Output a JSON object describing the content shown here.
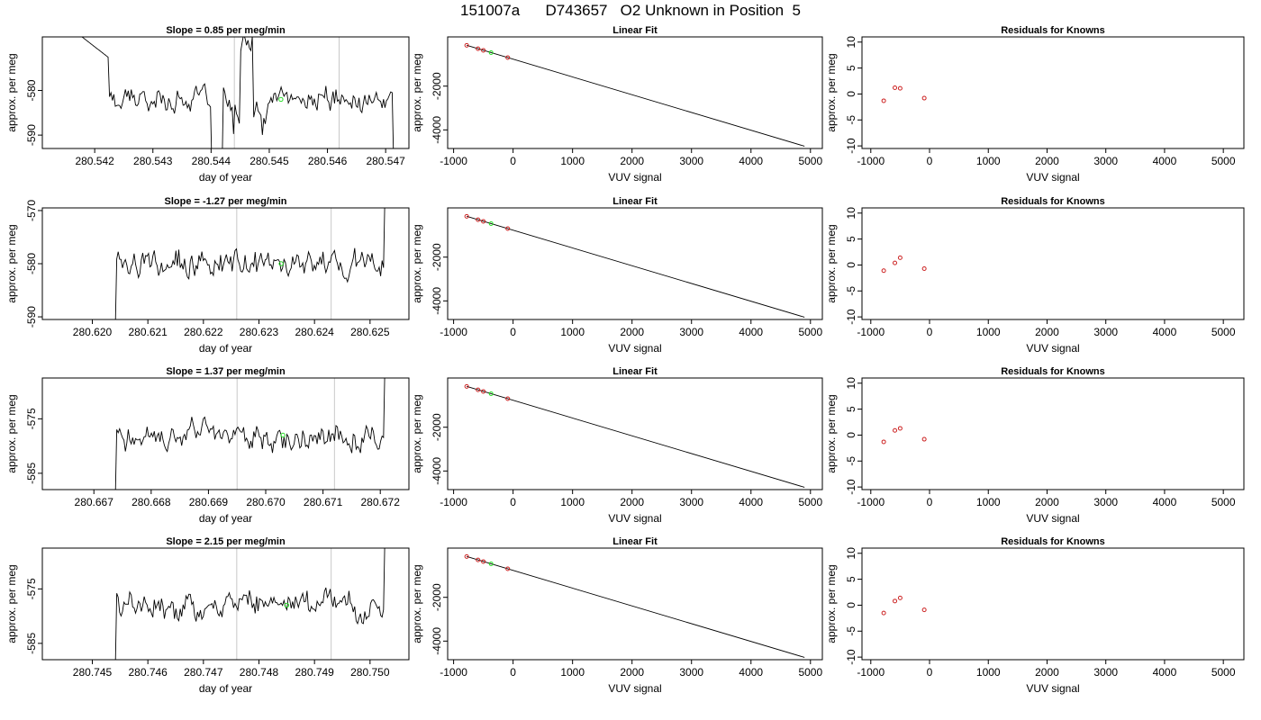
{
  "figure_title": "151007a      D743657   O2 Unknown in Position  5",
  "chart_data": [
    {
      "type": "line",
      "title": "Slope =  0.85  per meg/min",
      "xlabel": "day of year",
      "ylabel": "approx. per meg",
      "xlim": [
        280.5411,
        280.5474
      ],
      "ylim": [
        -593,
        -568
      ],
      "xticks": [
        280.542,
        280.543,
        280.544,
        280.545,
        280.546,
        280.547
      ],
      "xtick_labels": [
        "280.542",
        "280.543",
        "280.544",
        "280.545",
        "280.546",
        "280.547"
      ],
      "yticks": [
        -590,
        -580
      ],
      "ytick_labels": [
        "-590",
        "-580"
      ],
      "vlines": [
        280.5444,
        280.5462
      ],
      "marker": [
        280.5452,
        -582
      ]
    },
    {
      "type": "scatter",
      "title": "Linear Fit",
      "xlabel": "VUV signal",
      "ylabel": "approx. per meg",
      "xlim": [
        -1100,
        5200
      ],
      "ylim": [
        -4850,
        250
      ],
      "xticks": [
        -1000,
        0,
        1000,
        2000,
        3000,
        4000,
        5000
      ],
      "xtick_labels": [
        "-1000",
        "0",
        "1000",
        "2000",
        "3000",
        "4000",
        "5000"
      ],
      "yticks": [
        -4000,
        -2000
      ],
      "ytick_labels": [
        "-4000",
        "-2000"
      ],
      "fit_line": [
        [
          -780,
          -135
        ],
        [
          4900,
          -4745
        ]
      ],
      "points": [
        [
          -780,
          -135
        ],
        [
          -590,
          -290
        ],
        [
          -500,
          -365
        ],
        [
          -90,
          -695
        ]
      ],
      "unknown_point": [
        -370,
        -470
      ]
    },
    {
      "type": "scatter",
      "title": "Residuals for Knowns",
      "xlabel": "VUV signal",
      "ylabel": "approx. per meg",
      "xlim": [
        -1150,
        5350
      ],
      "ylim": [
        -10.5,
        11
      ],
      "xticks": [
        -1000,
        0,
        1000,
        2000,
        3000,
        4000,
        5000
      ],
      "xtick_labels": [
        "-1000",
        "0",
        "1000",
        "2000",
        "3000",
        "4000",
        "5000"
      ],
      "yticks": [
        -10,
        -5,
        0,
        5,
        10
      ],
      "ytick_labels": [
        "-10",
        "-5",
        "0",
        "5",
        "10"
      ],
      "points": [
        [
          -780,
          -1.3
        ],
        [
          -590,
          1.2
        ],
        [
          -500,
          1.1
        ],
        [
          -90,
          -0.8
        ]
      ]
    },
    {
      "type": "line",
      "title": "Slope =  -1.27  per meg/min",
      "xlabel": "day of year",
      "ylabel": "approx. per meg",
      "xlim": [
        280.6191,
        280.6257
      ],
      "ylim": [
        -590.5,
        -569.5
      ],
      "xticks": [
        280.62,
        280.621,
        280.622,
        280.623,
        280.624,
        280.625
      ],
      "xtick_labels": [
        "280.620",
        "280.621",
        "280.622",
        "280.623",
        "280.624",
        "280.625"
      ],
      "yticks": [
        -590,
        -580,
        -570
      ],
      "ytick_labels": [
        "-590",
        "-580",
        "-570"
      ],
      "vlines": [
        280.6226,
        280.6243
      ],
      "marker": [
        280.6234,
        -580
      ]
    },
    {
      "type": "scatter",
      "title": "Linear Fit",
      "xlabel": "VUV signal",
      "ylabel": "approx. per meg",
      "xlim": [
        -1100,
        5200
      ],
      "ylim": [
        -4850,
        250
      ],
      "xticks": [
        -1000,
        0,
        1000,
        2000,
        3000,
        4000,
        5000
      ],
      "xtick_labels": [
        "-1000",
        "0",
        "1000",
        "2000",
        "3000",
        "4000",
        "5000"
      ],
      "yticks": [
        -4000,
        -2000
      ],
      "ytick_labels": [
        "-4000",
        "-2000"
      ],
      "fit_line": [
        [
          -780,
          -135
        ],
        [
          4900,
          -4745
        ]
      ],
      "points": [
        [
          -780,
          -135
        ],
        [
          -590,
          -290
        ],
        [
          -500,
          -365
        ],
        [
          -90,
          -695
        ]
      ],
      "unknown_point": [
        -370,
        -470
      ]
    },
    {
      "type": "scatter",
      "title": "Residuals for Knowns",
      "xlabel": "VUV signal",
      "ylabel": "approx. per meg",
      "xlim": [
        -1150,
        5350
      ],
      "ylim": [
        -10.5,
        11
      ],
      "xticks": [
        -1000,
        0,
        1000,
        2000,
        3000,
        4000,
        5000
      ],
      "xtick_labels": [
        "-1000",
        "0",
        "1000",
        "2000",
        "3000",
        "4000",
        "5000"
      ],
      "yticks": [
        -10,
        -5,
        0,
        5,
        10
      ],
      "ytick_labels": [
        "-10",
        "-5",
        "0",
        "5",
        "10"
      ],
      "points": [
        [
          -780,
          -1.1
        ],
        [
          -590,
          0.4
        ],
        [
          -500,
          1.4
        ],
        [
          -90,
          -0.7
        ]
      ]
    },
    {
      "type": "line",
      "title": "Slope =  1.37  per meg/min",
      "xlabel": "day of year",
      "ylabel": "approx. per meg",
      "xlim": [
        280.6661,
        280.6725
      ],
      "ylim": [
        -588,
        -567.5
      ],
      "xticks": [
        280.667,
        280.668,
        280.669,
        280.67,
        280.671,
        280.672
      ],
      "xtick_labels": [
        "280.667",
        "280.668",
        "280.669",
        "280.670",
        "280.671",
        "280.672"
      ],
      "yticks": [
        -585,
        -575
      ],
      "ytick_labels": [
        "-585",
        "-575"
      ],
      "vlines": [
        280.6695,
        280.6712
      ],
      "marker": [
        280.6703,
        -578
      ]
    },
    {
      "type": "scatter",
      "title": "Linear Fit",
      "xlabel": "VUV signal",
      "ylabel": "approx. per meg",
      "xlim": [
        -1100,
        5200
      ],
      "ylim": [
        -4850,
        250
      ],
      "xticks": [
        -1000,
        0,
        1000,
        2000,
        3000,
        4000,
        5000
      ],
      "xtick_labels": [
        "-1000",
        "0",
        "1000",
        "2000",
        "3000",
        "4000",
        "5000"
      ],
      "yticks": [
        -4000,
        -2000
      ],
      "ytick_labels": [
        "-4000",
        "-2000"
      ],
      "fit_line": [
        [
          -780,
          -135
        ],
        [
          4900,
          -4745
        ]
      ],
      "points": [
        [
          -780,
          -135
        ],
        [
          -590,
          -290
        ],
        [
          -500,
          -365
        ],
        [
          -90,
          -695
        ]
      ],
      "unknown_point": [
        -370,
        -470
      ]
    },
    {
      "type": "scatter",
      "title": "Residuals for Knowns",
      "xlabel": "VUV signal",
      "ylabel": "approx. per meg",
      "xlim": [
        -1150,
        5350
      ],
      "ylim": [
        -10.5,
        11
      ],
      "xticks": [
        -1000,
        0,
        1000,
        2000,
        3000,
        4000,
        5000
      ],
      "xtick_labels": [
        "-1000",
        "0",
        "1000",
        "2000",
        "3000",
        "4000",
        "5000"
      ],
      "yticks": [
        -10,
        -5,
        0,
        5,
        10
      ],
      "ytick_labels": [
        "-10",
        "-5",
        "0",
        "5",
        "10"
      ],
      "points": [
        [
          -780,
          -1.3
        ],
        [
          -590,
          0.9
        ],
        [
          -500,
          1.3
        ],
        [
          -90,
          -0.8
        ]
      ]
    },
    {
      "type": "line",
      "title": "Slope =  2.15  per meg/min",
      "xlabel": "day of year",
      "ylabel": "approx. per meg",
      "xlim": [
        280.7441,
        280.7507
      ],
      "ylim": [
        -588,
        -567.5
      ],
      "xticks": [
        280.745,
        280.746,
        280.747,
        280.748,
        280.749,
        280.75
      ],
      "xtick_labels": [
        "280.745",
        "280.746",
        "280.747",
        "280.748",
        "280.749",
        "280.750"
      ],
      "yticks": [
        -585,
        -575
      ],
      "ytick_labels": [
        "-585",
        "-575"
      ],
      "vlines": [
        280.7476,
        280.7493
      ],
      "marker": [
        280.7485,
        -578
      ]
    },
    {
      "type": "scatter",
      "title": "Linear Fit",
      "xlabel": "VUV signal",
      "ylabel": "approx. per meg",
      "xlim": [
        -1100,
        5200
      ],
      "ylim": [
        -4850,
        250
      ],
      "xticks": [
        -1000,
        0,
        1000,
        2000,
        3000,
        4000,
        5000
      ],
      "xtick_labels": [
        "-1000",
        "0",
        "1000",
        "2000",
        "3000",
        "4000",
        "5000"
      ],
      "yticks": [
        -4000,
        -2000
      ],
      "ytick_labels": [
        "-4000",
        "-2000"
      ],
      "fit_line": [
        [
          -780,
          -135
        ],
        [
          4900,
          -4745
        ]
      ],
      "points": [
        [
          -780,
          -135
        ],
        [
          -590,
          -290
        ],
        [
          -500,
          -365
        ],
        [
          -90,
          -695
        ]
      ],
      "unknown_point": [
        -370,
        -470
      ]
    },
    {
      "type": "scatter",
      "title": "Residuals for Knowns",
      "xlabel": "VUV signal",
      "ylabel": "approx. per meg",
      "xlim": [
        -1150,
        5350
      ],
      "ylim": [
        -10.5,
        11
      ],
      "xticks": [
        -1000,
        0,
        1000,
        2000,
        3000,
        4000,
        5000
      ],
      "xtick_labels": [
        "-1000",
        "0",
        "1000",
        "2000",
        "3000",
        "4000",
        "5000"
      ],
      "yticks": [
        -10,
        -5,
        0,
        5,
        10
      ],
      "ytick_labels": [
        "-10",
        "-5",
        "0",
        "5",
        "10"
      ],
      "points": [
        [
          -780,
          -1.5
        ],
        [
          -590,
          0.8
        ],
        [
          -500,
          1.4
        ],
        [
          -90,
          -0.9
        ]
      ]
    }
  ]
}
